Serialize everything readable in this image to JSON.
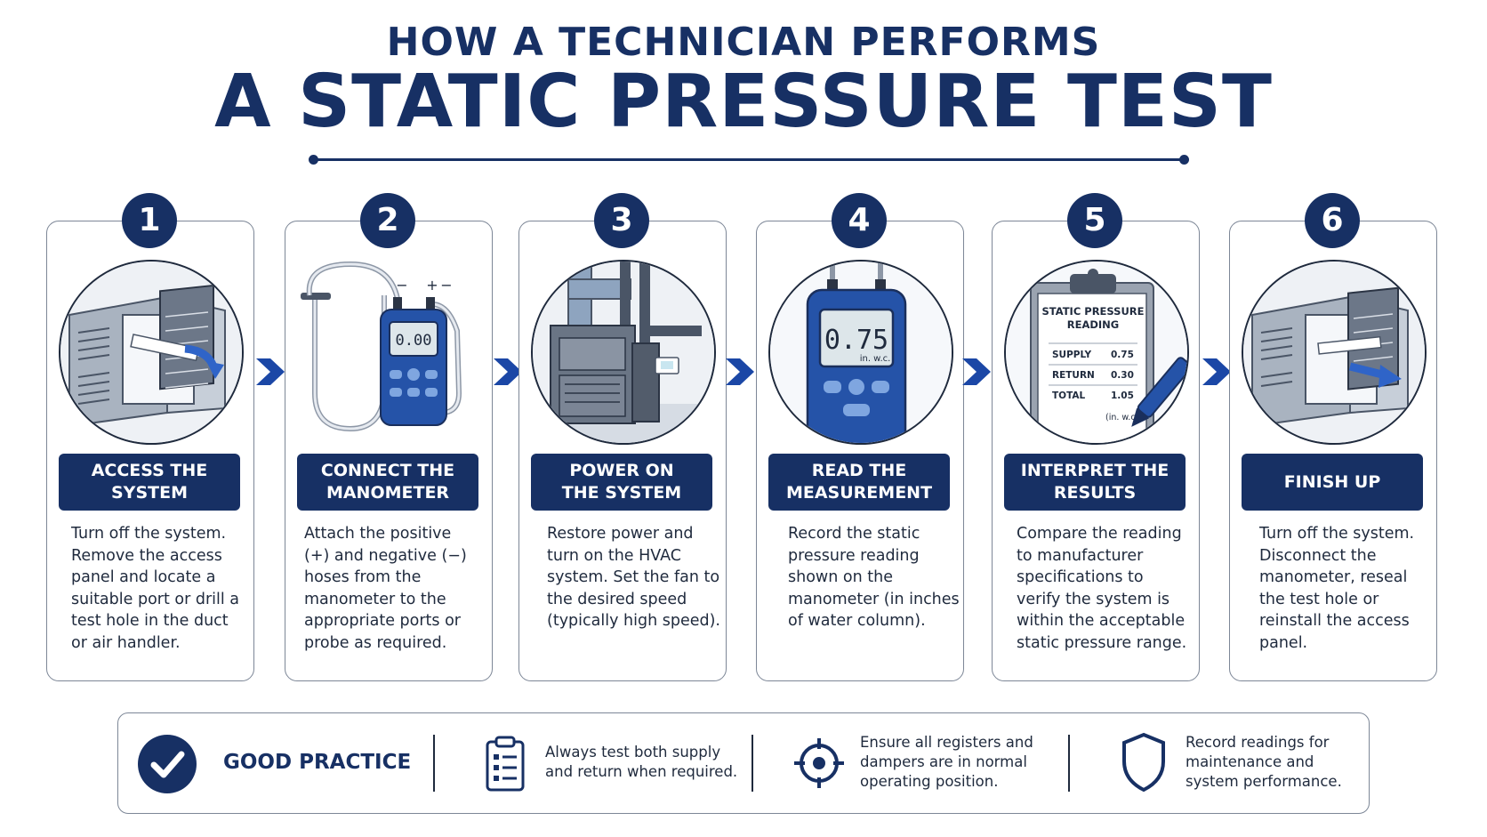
{
  "title": {
    "line1": "HOW A TECHNICIAN PERFORMS",
    "line2": "A STATIC PRESSURE TEST"
  },
  "steps": [
    {
      "number": "1",
      "banner_line1": "ACCESS THE",
      "banner_line2": "SYSTEM",
      "description": "Turn off the system. Remove the access panel and locate a suitable port or drill a test hole in the duct or air handler.",
      "icon": "air-handler-panel-icon"
    },
    {
      "number": "2",
      "banner_line1": "CONNECT THE",
      "banner_line2": "MANOMETER",
      "description": "Attach the positive (+) and negative (−) hoses from the manometer to the appropriate ports or probe as required.",
      "icon": "manometer-hoses-icon",
      "display": "0.00",
      "hose_labels": [
        "−",
        "+",
        "−"
      ]
    },
    {
      "number": "3",
      "banner_line1": "POWER ON",
      "banner_line2": "THE SYSTEM",
      "description": "Restore power and turn on the HVAC system. Set the fan to the desired speed (typically high speed).",
      "icon": "furnace-icon"
    },
    {
      "number": "4",
      "banner_line1": "READ THE",
      "banner_line2": "MEASUREMENT",
      "description": "Record the static pressure reading shown on the manometer (in inches of water column).",
      "icon": "manometer-reading-icon",
      "display": "0.75",
      "display_unit": "in. w.c."
    },
    {
      "number": "5",
      "banner_line1": "INTERPRET THE",
      "banner_line2": "RESULTS",
      "description": "Compare the reading to manufacturer specifications to verify the system is within the acceptable static pressure range.",
      "icon": "clipboard-icon",
      "sheet": {
        "title_line1": "STATIC PRESSURE",
        "title_line2": "READING",
        "rows": [
          {
            "label": "SUPPLY",
            "value": "0.75"
          },
          {
            "label": "RETURN",
            "value": "0.30"
          },
          {
            "label": "TOTAL",
            "value": "1.05"
          }
        ],
        "unit": "(in. w.c.)"
      }
    },
    {
      "number": "6",
      "banner_line1": "FINISH UP",
      "banner_line2": "",
      "description": "Turn off the system. Disconnect the manometer, reseal the test hole or reinstall the access panel.",
      "icon": "air-handler-close-icon"
    }
  ],
  "good_practice": {
    "title": "GOOD PRACTICE",
    "icon": "checkmark-icon",
    "items": [
      {
        "icon": "checklist-icon",
        "text": "Always test both supply and return when required."
      },
      {
        "icon": "crosshair-icon",
        "text": "Ensure all registers and dampers are in normal operating position."
      },
      {
        "icon": "shield-icon",
        "text": "Record readings for maintenance and system performance."
      }
    ]
  },
  "colors": {
    "navy": "#173064",
    "border": "#7d8797",
    "text": "#1f2a3d",
    "accent_blue": "#2f64c8"
  }
}
